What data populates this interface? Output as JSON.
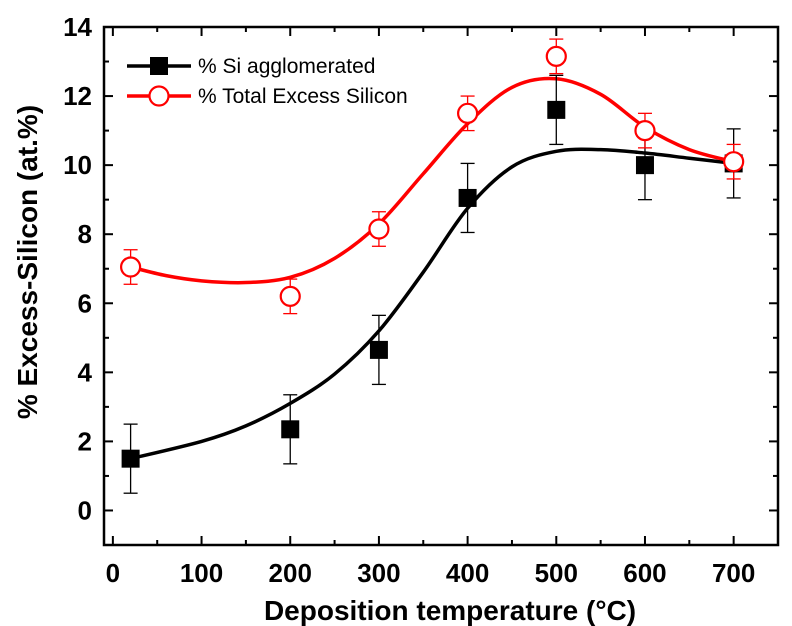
{
  "chart_data": {
    "type": "scatter",
    "xlabel": "Deposition temperature (°C)",
    "ylabel": "% Excess-Silicon (at.%)",
    "xlim": [
      -10,
      750
    ],
    "ylim": [
      -1,
      14
    ],
    "x_ticks": [
      "0",
      "100",
      "200",
      "300",
      "400",
      "500",
      "600",
      "700"
    ],
    "y_ticks": [
      "0",
      "2",
      "4",
      "6",
      "8",
      "10",
      "12",
      "14"
    ],
    "legend_placement": "top-left",
    "grid": false,
    "series": [
      {
        "name": "% Si agglomerated",
        "marker": "filled-square",
        "color": "#000000",
        "fit_curve": true,
        "points": [
          {
            "x": 20,
            "y": 1.5,
            "err": 1.0
          },
          {
            "x": 200,
            "y": 2.35,
            "err": 1.0
          },
          {
            "x": 300,
            "y": 4.65,
            "err": 1.0
          },
          {
            "x": 400,
            "y": 9.05,
            "err": 1.0
          },
          {
            "x": 500,
            "y": 11.6,
            "err": 1.0
          },
          {
            "x": 600,
            "y": 10.0,
            "err": 1.0
          },
          {
            "x": 700,
            "y": 10.05,
            "err": 1.0
          }
        ],
        "curve": [
          [
            20,
            1.5
          ],
          [
            100,
            2.0
          ],
          [
            150,
            2.45
          ],
          [
            200,
            3.1
          ],
          [
            250,
            3.95
          ],
          [
            300,
            5.2
          ],
          [
            350,
            6.9
          ],
          [
            400,
            8.75
          ],
          [
            450,
            9.95
          ],
          [
            500,
            10.4
          ],
          [
            550,
            10.45
          ],
          [
            600,
            10.35
          ],
          [
            650,
            10.2
          ],
          [
            700,
            10.05
          ]
        ]
      },
      {
        "name": "% Total Excess Silicon",
        "marker": "open-circle",
        "color": "#ff0000",
        "fit_curve": true,
        "points": [
          {
            "x": 20,
            "y": 7.05,
            "err": 0.5
          },
          {
            "x": 200,
            "y": 6.2,
            "err": 0.5
          },
          {
            "x": 300,
            "y": 8.15,
            "err": 0.5
          },
          {
            "x": 400,
            "y": 11.5,
            "err": 0.5
          },
          {
            "x": 500,
            "y": 13.15,
            "err": 0.5
          },
          {
            "x": 600,
            "y": 11.0,
            "err": 0.5
          },
          {
            "x": 700,
            "y": 10.1,
            "err": 0.5
          }
        ],
        "curve": [
          [
            20,
            7.05
          ],
          [
            60,
            6.8
          ],
          [
            100,
            6.65
          ],
          [
            150,
            6.6
          ],
          [
            200,
            6.75
          ],
          [
            250,
            7.3
          ],
          [
            300,
            8.3
          ],
          [
            350,
            9.75
          ],
          [
            400,
            11.2
          ],
          [
            450,
            12.25
          ],
          [
            500,
            12.5
          ],
          [
            550,
            12.05
          ],
          [
            600,
            11.1
          ],
          [
            650,
            10.45
          ],
          [
            700,
            10.1
          ]
        ]
      }
    ]
  }
}
